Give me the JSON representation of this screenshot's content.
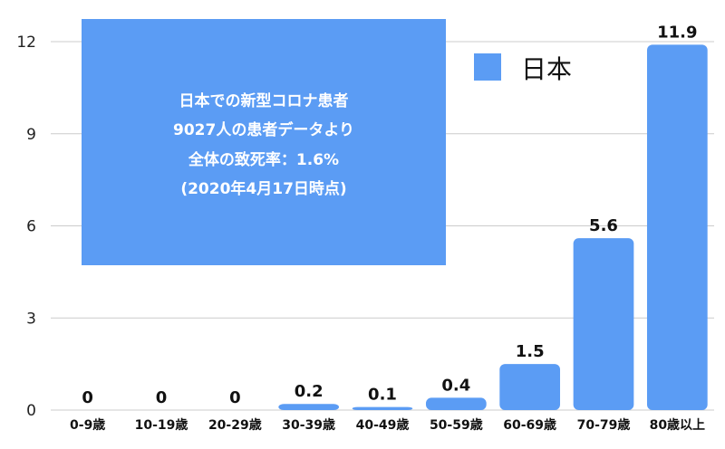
{
  "chart_data": {
    "type": "bar",
    "categories": [
      "0-9歳",
      "10-19歳",
      "20-29歳",
      "30-39歳",
      "40-49歳",
      "50-59歳",
      "60-69歳",
      "70-79歳",
      "80歳以上"
    ],
    "series": [
      {
        "name": "日本",
        "values": [
          0,
          0,
          0,
          0.2,
          0.1,
          0.4,
          1.5,
          5.6,
          11.9
        ]
      }
    ],
    "data_labels": [
      "0",
      "0",
      "0",
      "0.2",
      "0.1",
      "0.4",
      "1.5",
      "5.6",
      "11.9"
    ],
    "yticks": [
      0,
      3,
      6,
      9,
      12
    ],
    "ylim": [
      0,
      12
    ],
    "grid": true,
    "legend_position": "top-right",
    "annotation_lines": [
      "日本での新型コロナ患者",
      "9027人の患者データより",
      "全体の致死率：1.6%",
      "(2020年4月17日時点)"
    ],
    "colors": {
      "bar": "#5B9CF4",
      "annotation_box": "#5B9CF4",
      "grid": "#cccccc"
    }
  }
}
